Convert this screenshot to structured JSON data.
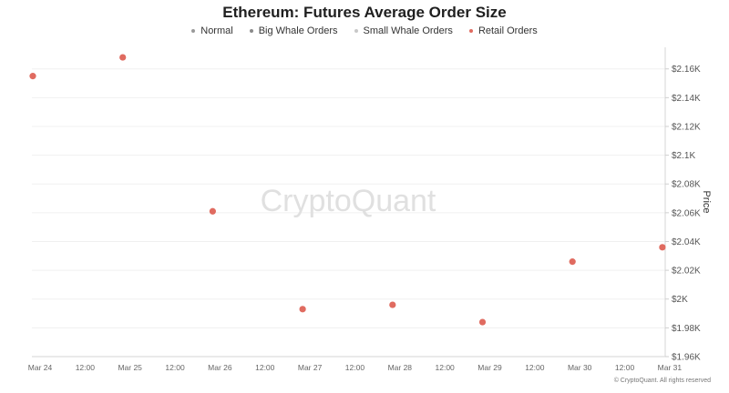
{
  "chart_data": {
    "type": "scatter",
    "title": "Ethereum: Futures Average Order Size",
    "legend": [
      {
        "name": "Normal",
        "color": "#9a9a9a"
      },
      {
        "name": "Big Whale Orders",
        "color": "#8a8a8a"
      },
      {
        "name": "Small Whale Orders",
        "color": "#c8c8c8"
      },
      {
        "name": "Retail Orders",
        "color": "#e06b60"
      }
    ],
    "ylabel": "Price",
    "ylim": [
      1960,
      2175
    ],
    "yticks": [
      1960,
      1980,
      2000,
      2020,
      2040,
      2060,
      2080,
      2100,
      2120,
      2140,
      2160
    ],
    "ytick_labels": [
      "$1.96K",
      "$1.98K",
      "$2K",
      "$2.02K",
      "$2.04K",
      "$2.06K",
      "$2.08K",
      "$2.1K",
      "$2.12K",
      "$2.14K",
      "$2.16K"
    ],
    "xtick_labels": [
      "Mar 24",
      "12:00",
      "Mar 25",
      "12:00",
      "Mar 26",
      "12:00",
      "Mar 27",
      "12:00",
      "Mar 28",
      "12:00",
      "Mar 29",
      "12:00",
      "Mar 30",
      "12:00",
      "Mar 31"
    ],
    "x": [
      "Mar 24",
      "Mar 25",
      "Mar 26",
      "Mar 27",
      "Mar 28",
      "Mar 29",
      "Mar 30",
      "Mar 31"
    ],
    "series": [
      {
        "name": "Price",
        "color": "#e06b60",
        "values": [
          2155,
          2168,
          2061,
          1993,
          1996,
          1984,
          2026,
          2036
        ]
      }
    ],
    "legend_placement": "top-center",
    "grid": true,
    "watermark": "CryptoQuant",
    "copyright": "© CryptoQuant. All rights reserved"
  }
}
